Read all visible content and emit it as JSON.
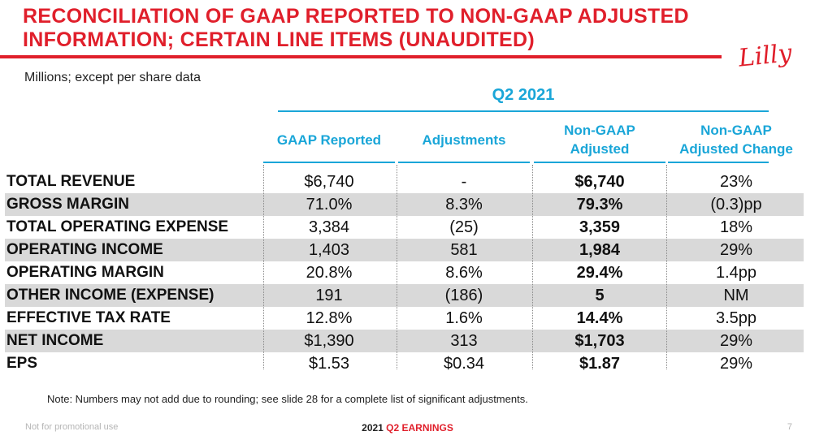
{
  "title": {
    "line1": "RECONCILIATION OF GAAP REPORTED TO NON-GAAP ADJUSTED",
    "line2": "INFORMATION; CERTAIN LINE ITEMS (UNAUDITED)"
  },
  "logo_text": "Lilly",
  "units": "Millions; except per share data",
  "period": "Q2 2021",
  "columns": {
    "gaap": "GAAP Reported",
    "adjustments": "Adjustments",
    "nongaap_line1": "Non-GAAP",
    "nongaap_line2": "Adjusted",
    "change_line1": "Non-GAAP",
    "change_line2": "Adjusted Change"
  },
  "rows": [
    {
      "label": "TOTAL REVENUE",
      "gaap": "$6,740",
      "adj": "-",
      "nongaap": "$6,740",
      "change": "23%"
    },
    {
      "label": "GROSS MARGIN",
      "gaap": "71.0%",
      "adj": "8.3%",
      "nongaap": "79.3%",
      "change": "(0.3)pp"
    },
    {
      "label": "TOTAL OPERATING EXPENSE",
      "gaap": "3,384",
      "adj": "(25)",
      "nongaap": "3,359",
      "change": "18%"
    },
    {
      "label": "OPERATING INCOME",
      "gaap": "1,403",
      "adj": "581",
      "nongaap": "1,984",
      "change": "29%"
    },
    {
      "label": "OPERATING MARGIN",
      "gaap": "20.8%",
      "adj": "8.6%",
      "nongaap": "29.4%",
      "change": "1.4pp"
    },
    {
      "label": "OTHER INCOME (EXPENSE)",
      "gaap": "191",
      "adj": "(186)",
      "nongaap": "5",
      "change": "NM"
    },
    {
      "label": "EFFECTIVE TAX RATE",
      "gaap": "12.8%",
      "adj": "1.6%",
      "nongaap": "14.4%",
      "change": "3.5pp"
    },
    {
      "label": "NET INCOME",
      "gaap": "$1,390",
      "adj": "313",
      "nongaap": "$1,703",
      "change": "29%"
    },
    {
      "label": "EPS",
      "gaap": "$1.53",
      "adj": "$0.34",
      "nongaap": "$1.87",
      "change": "29%"
    }
  ],
  "note": "Note: Numbers may not add due to rounding; see slide 28 for a complete list of significant adjustments.",
  "footer": {
    "left": "Not for promotional use",
    "center_prefix": "2021 ",
    "center_accent": "Q2 EARNINGS",
    "page": "7"
  },
  "colors": {
    "brand_red": "#e01f2b",
    "header_blue": "#1aa6d8",
    "row_shade": "#d9d9d9"
  }
}
